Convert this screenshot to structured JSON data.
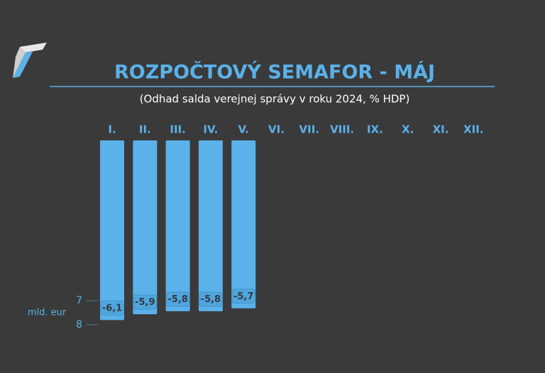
{
  "chart_data": {
    "type": "bar",
    "title": "ROZPOČTOVÝ SEMAFOR - MÁJ",
    "subtitle": "(Odhad salda verejnej správy v roku 2024, % HDP)",
    "categories": [
      "I.",
      "II.",
      "III.",
      "IV.",
      "V.",
      "VI.",
      "VII.",
      "VIII.",
      "IX.",
      "X.",
      "XI.",
      "XII."
    ],
    "values": [
      -6.1,
      -5.9,
      -5.8,
      -5.8,
      -5.7,
      null,
      null,
      null,
      null,
      null,
      null,
      null
    ],
    "value_labels": [
      "-6,1",
      "-5,9",
      "-5,8",
      "-5,8",
      "-5,7",
      null,
      null,
      null,
      null,
      null,
      null,
      null
    ],
    "color": "#5bb1e9",
    "ylim": [
      0,
      -6.5
    ],
    "y2label": "mld. eur",
    "y2lim": [
      7,
      8
    ],
    "y2ticks": [
      7,
      8
    ]
  }
}
